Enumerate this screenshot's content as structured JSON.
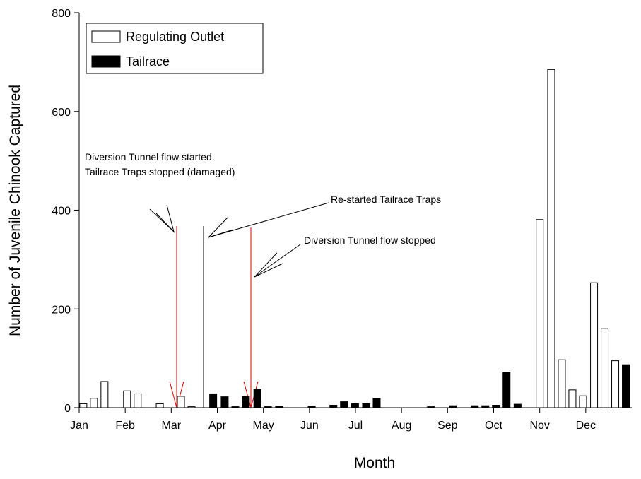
{
  "chart_data": {
    "type": "bar",
    "x_label": "Month",
    "y_label": "Number of Juvenile Chinook Captured",
    "xlim": [
      0,
      12
    ],
    "xticks": [
      {
        "value": 0,
        "label": "Jan"
      },
      {
        "value": 1,
        "label": "Feb"
      },
      {
        "value": 2,
        "label": "Mar"
      },
      {
        "value": 3,
        "label": "Apr"
      },
      {
        "value": 4,
        "label": "May"
      },
      {
        "value": 5,
        "label": "Jun"
      },
      {
        "value": 6,
        "label": "Jul"
      },
      {
        "value": 7,
        "label": "Aug"
      },
      {
        "value": 8,
        "label": "Sep"
      },
      {
        "value": 9,
        "label": "Oct"
      },
      {
        "value": 10,
        "label": "Nov"
      },
      {
        "value": 11,
        "label": "Dec"
      }
    ],
    "ylim": [
      0,
      800
    ],
    "yticks": [
      0,
      200,
      400,
      600,
      800
    ],
    "series": [
      {
        "name": "Regulating Outlet",
        "color": "#ffffff",
        "x": [
          0.09,
          0.32,
          0.55,
          1.04,
          1.27,
          1.75,
          2.21,
          2.44,
          10.0,
          10.25,
          10.48,
          10.71,
          10.94,
          11.18,
          11.41,
          11.64
        ],
        "values": [
          8,
          19,
          53,
          34,
          28,
          8,
          23,
          2,
          381,
          685,
          97,
          36,
          24,
          253,
          160,
          95
        ]
      },
      {
        "name": "Tailrace",
        "color": "#000000",
        "x": [
          2.91,
          3.16,
          3.39,
          3.62,
          3.87,
          4.1,
          4.34,
          5.05,
          5.52,
          5.75,
          5.99,
          6.23,
          6.46,
          7.64,
          8.11,
          8.59,
          8.82,
          9.05,
          9.28,
          9.52,
          11.87
        ],
        "values": [
          28,
          22,
          2,
          23,
          37,
          2,
          3,
          3,
          5,
          12,
          8,
          8,
          19,
          2,
          4,
          4,
          4,
          5,
          71,
          7,
          87
        ]
      }
    ],
    "annotations": [
      "Diversion Tunnel flow started.",
      "Tailrace Traps stopped (damaged)",
      "Re-started Tailrace Traps",
      "Diversion Tunnel flow stopped"
    ]
  }
}
